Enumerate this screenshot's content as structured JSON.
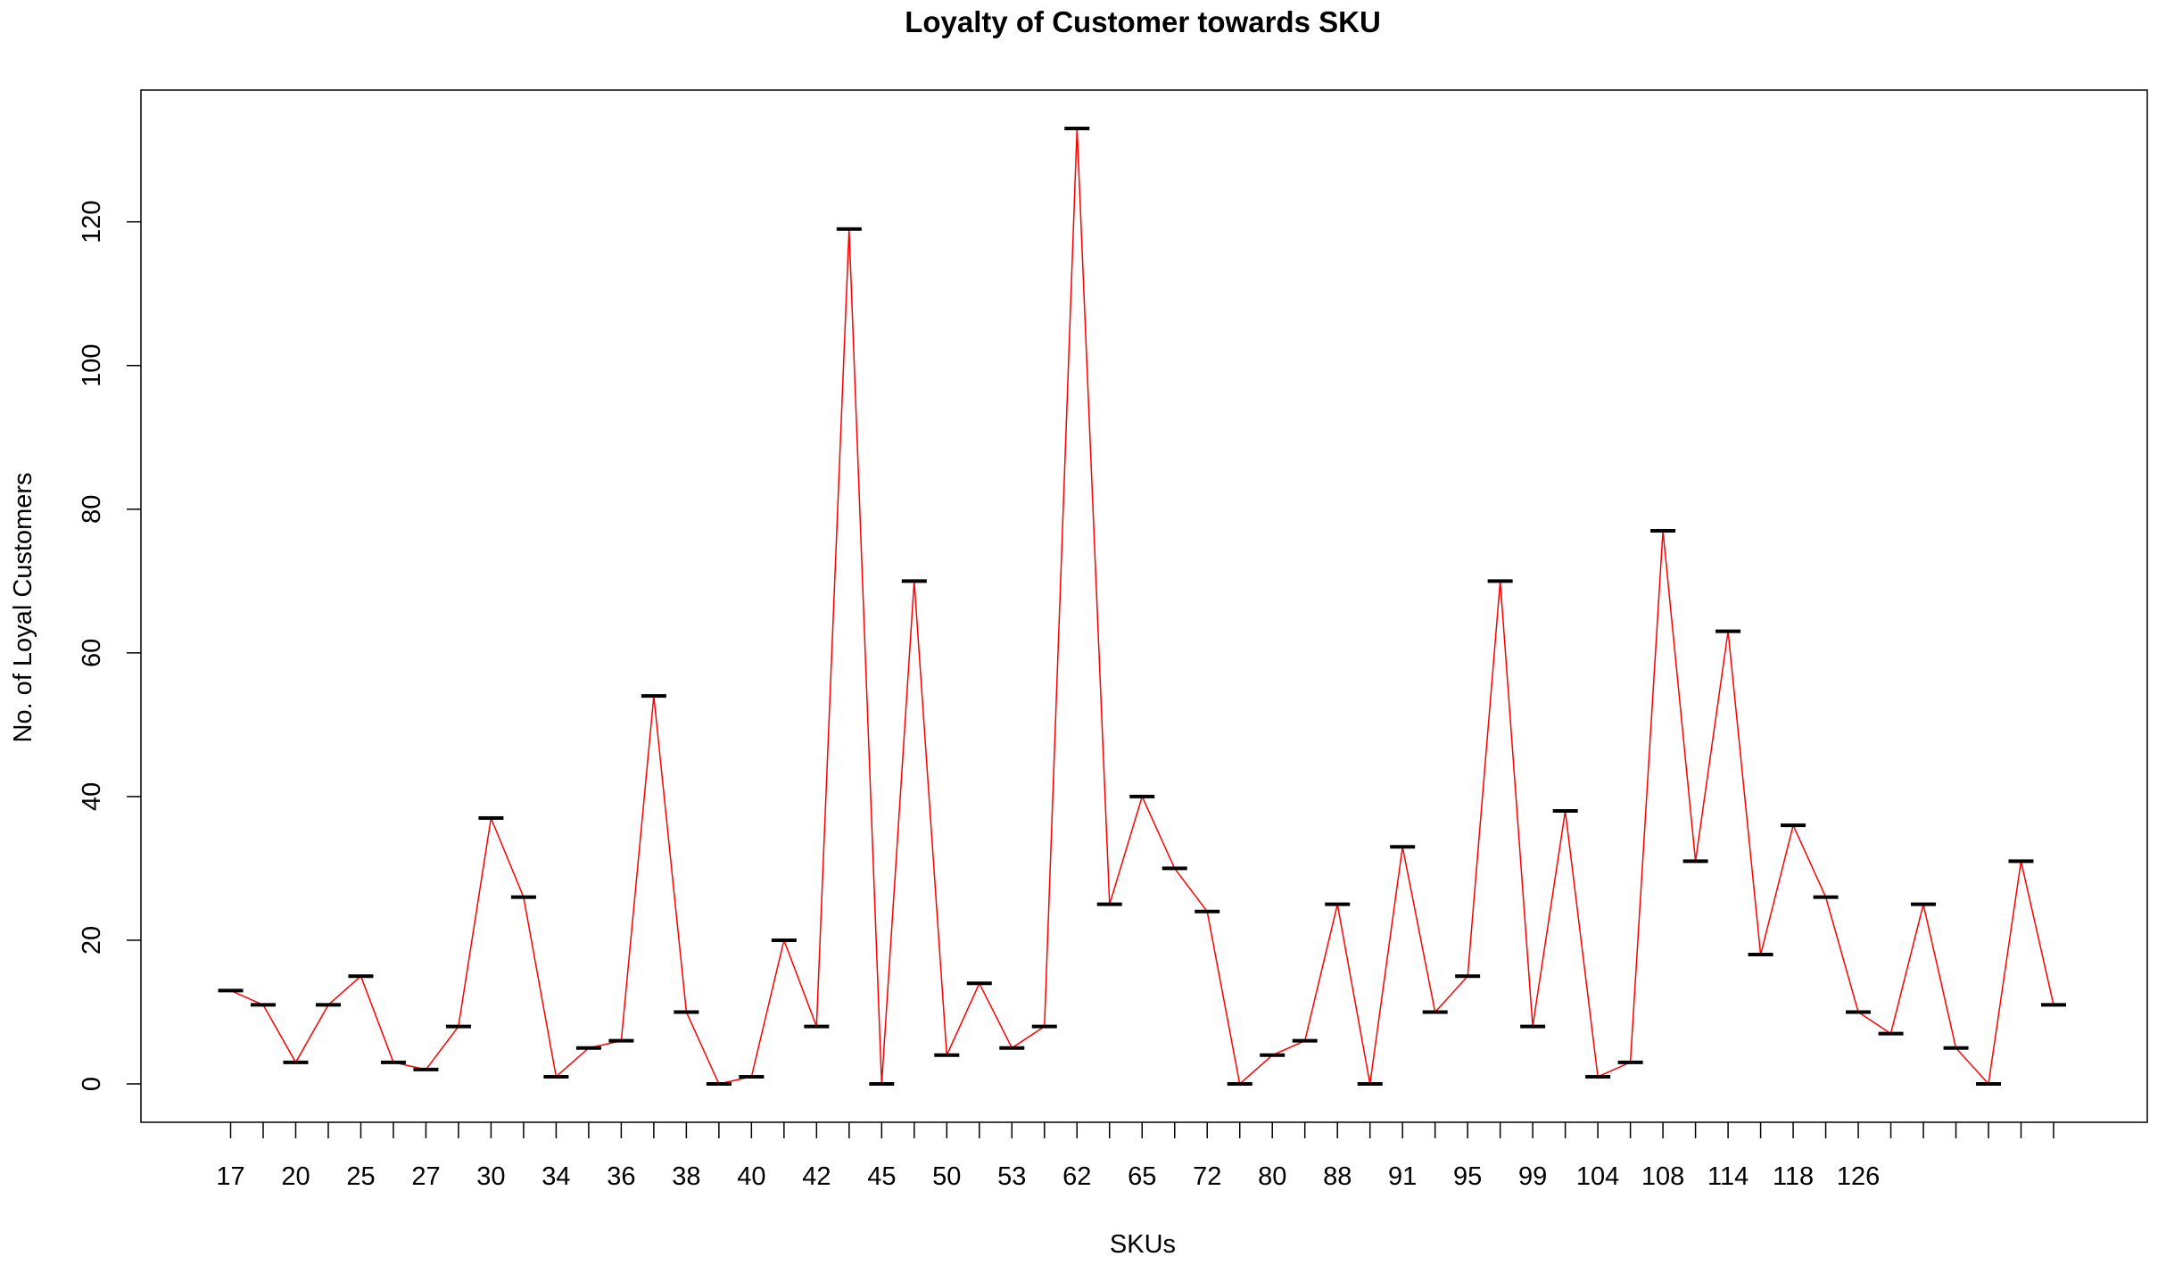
{
  "chart_data": {
    "type": "line",
    "title": "Loyalty of Customer towards SKU",
    "xlabel": "SKUs",
    "ylabel": "No. of Loyal Customers",
    "ylim": [
      -5,
      138
    ],
    "y_ticks": [
      0,
      20,
      40,
      60,
      80,
      100,
      120
    ],
    "grid": false,
    "x_tick_labels": [
      "17",
      "20",
      "25",
      "27",
      "30",
      "34",
      "36",
      "38",
      "40",
      "42",
      "45",
      "50",
      "53",
      "62",
      "65",
      "72",
      "80",
      "88",
      "91",
      "95",
      "99",
      "104",
      "108",
      "114",
      "118",
      "126"
    ],
    "values": [
      13,
      11,
      3,
      11,
      15,
      3,
      2,
      8,
      37,
      26,
      1,
      5,
      6,
      54,
      10,
      0,
      1,
      20,
      8,
      119,
      0,
      70,
      4,
      14,
      5,
      8,
      133,
      25,
      40,
      30,
      24,
      0,
      4,
      6,
      25,
      0,
      33,
      10,
      15,
      70,
      8,
      38,
      1,
      3,
      77,
      31,
      63,
      18,
      36,
      26,
      10,
      7,
      25,
      5,
      0,
      31,
      11
    ],
    "line_color": "#ff0000",
    "marker_color": "#000000"
  }
}
